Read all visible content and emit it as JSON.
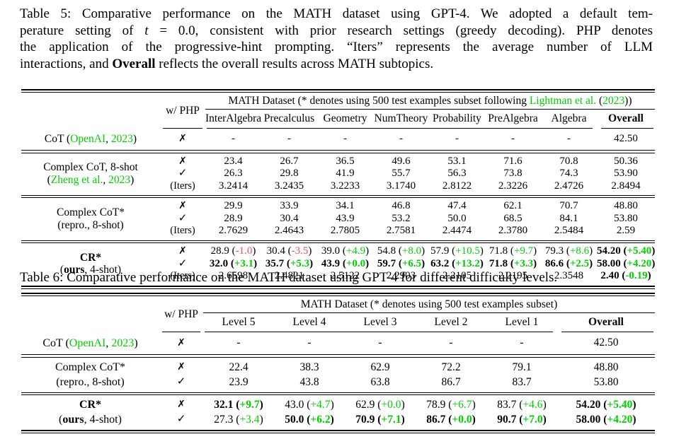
{
  "colors": {
    "green": "#00cf00",
    "red": "#ff4a4a",
    "text": "#000000",
    "background": "#ffffff"
  },
  "table5": {
    "caption_lines": [
      [
        {
          "t": "Table 5: Comparative performance on the MATH dataset using GPT-4. We adopted a default tem-"
        }
      ],
      [
        {
          "t": "perature setting of "
        },
        {
          "t": "t",
          "i": true
        },
        {
          "t": " = 0.0, consistent with prior research settings (greedy decoding). PHP denotes"
        }
      ],
      [
        {
          "t": "the application of the progressive-hint prompting. “Iters” represents the average number of LLM"
        }
      ],
      [
        {
          "t": "interactions, and "
        },
        {
          "t": "Overall",
          "b": true
        },
        {
          "t": " reflects the overall results across MATH subtopics."
        }
      ]
    ],
    "php_header": "w/ PHP",
    "spanner": [
      {
        "t": "MATH Dataset (* denotes using 500 test examples subset following "
      },
      {
        "t": "Lightman et al.",
        "g": true
      },
      {
        "t": " ("
      },
      {
        "t": "2023",
        "g": true
      },
      {
        "t": "))"
      }
    ],
    "columns": [
      "InterAlgebra",
      "Precalculus",
      "Geometry",
      "NumTheory",
      "Probability",
      "PreAlgebra",
      "Algebra",
      "Overall"
    ],
    "groups": [
      {
        "label": [
          [
            {
              "t": "CoT ("
            },
            {
              "t": "OpenAI",
              "g": true
            },
            {
              "t": ", "
            },
            {
              "t": "2023",
              "g": true
            },
            {
              "t": ")"
            }
          ]
        ],
        "rows": [
          {
            "php": "✗",
            "cells": [
              {
                "v": "-"
              },
              {
                "v": "-"
              },
              {
                "v": "-"
              },
              {
                "v": "-"
              },
              {
                "v": "-"
              },
              {
                "v": "-"
              },
              {
                "v": "-"
              },
              {
                "v": "42.50"
              }
            ]
          }
        ]
      },
      {
        "label": [
          [
            {
              "t": "Complex CoT, 8-shot"
            }
          ],
          [
            {
              "t": "("
            },
            {
              "t": "Zheng et al.",
              "g": true
            },
            {
              "t": ", "
            },
            {
              "t": "2023",
              "g": true
            },
            {
              "t": ")"
            }
          ]
        ],
        "rows": [
          {
            "php": "✗",
            "cells": [
              {
                "v": "23.4"
              },
              {
                "v": "26.7"
              },
              {
                "v": "36.5"
              },
              {
                "v": "49.6"
              },
              {
                "v": "53.1"
              },
              {
                "v": "71.6"
              },
              {
                "v": "70.8"
              },
              {
                "v": "50.36"
              }
            ]
          },
          {
            "php": "✓",
            "cells": [
              {
                "v": "26.3"
              },
              {
                "v": "29.8"
              },
              {
                "v": "41.9"
              },
              {
                "v": "55.7"
              },
              {
                "v": "56.3"
              },
              {
                "v": "73.8"
              },
              {
                "v": "74.3"
              },
              {
                "v": "53.90"
              }
            ]
          },
          {
            "php": "(Iters)",
            "cells": [
              {
                "v": "3.2414"
              },
              {
                "v": "3.2435"
              },
              {
                "v": "3.2233"
              },
              {
                "v": "3.1740"
              },
              {
                "v": "2.8122"
              },
              {
                "v": "2.3226"
              },
              {
                "v": "2.4726"
              },
              {
                "v": "2.8494"
              }
            ]
          }
        ]
      },
      {
        "label": [
          [
            {
              "t": "Complex CoT*"
            }
          ],
          [
            {
              "t": "(repro., 8-shot)"
            }
          ]
        ],
        "rows": [
          {
            "php": "✗",
            "cells": [
              {
                "v": "29.9"
              },
              {
                "v": "33.9"
              },
              {
                "v": "34.1"
              },
              {
                "v": "46.8"
              },
              {
                "v": "47.4"
              },
              {
                "v": "62.1"
              },
              {
                "v": "70.7"
              },
              {
                "v": "48.80"
              }
            ]
          },
          {
            "php": "✓",
            "cells": [
              {
                "v": "28.9"
              },
              {
                "v": "30.4"
              },
              {
                "v": "43.9"
              },
              {
                "v": "53.2"
              },
              {
                "v": "50.0"
              },
              {
                "v": "68.5"
              },
              {
                "v": "84.1"
              },
              {
                "v": "53.80"
              }
            ]
          },
          {
            "php": "(Iters)",
            "cells": [
              {
                "v": "2.7629"
              },
              {
                "v": "2.4643"
              },
              {
                "v": "2.7805"
              },
              {
                "v": "2.7581"
              },
              {
                "v": "2.4474"
              },
              {
                "v": "2.3780"
              },
              {
                "v": "2.5484"
              },
              {
                "v": "2.59"
              }
            ]
          }
        ]
      },
      {
        "label": [
          [
            {
              "t": "CR*",
              "b": true
            }
          ],
          [
            {
              "t": "(",
              "": ""
            },
            {
              "t": "ours",
              "b": true
            },
            {
              "t": ", 4-shot)"
            }
          ]
        ],
        "rows": [
          {
            "php": "✗",
            "cells": [
              {
                "v": "28.9",
                "d": "-1.0",
                "dc": "r"
              },
              {
                "v": "30.4",
                "d": "-3.5",
                "dc": "r"
              },
              {
                "v": "39.0",
                "d": "+4.9"
              },
              {
                "v": "54.8",
                "d": "+8.0"
              },
              {
                "v": "57.9",
                "d": "+10.5"
              },
              {
                "v": "71.8",
                "d": "+9.7"
              },
              {
                "v": "79.3",
                "d": "+8.6"
              },
              {
                "v": "54.20",
                "b": true,
                "d": "+5.40"
              }
            ]
          },
          {
            "php": "✓",
            "cells": [
              {
                "v": "32.0",
                "b": true,
                "d": "+3.1"
              },
              {
                "v": "35.7",
                "b": true,
                "d": "+5.3"
              },
              {
                "v": "43.9",
                "b": true,
                "d": "+0.0"
              },
              {
                "v": "59.7",
                "b": true,
                "d": "+6.5"
              },
              {
                "v": "63.2",
                "b": true,
                "d": "+13.2"
              },
              {
                "v": "71.8",
                "b": true,
                "d": "+3.3"
              },
              {
                "v": "86.6",
                "b": true,
                "d": "+2.5"
              },
              {
                "v": "58.00",
                "b": true,
                "d": "+4.20"
              }
            ]
          },
          {
            "php": "(Iters)",
            "cells": [
              {
                "v": "2.6598"
              },
              {
                "v": "2.4821"
              },
              {
                "v": "2.5122"
              },
              {
                "v": "2.2903"
              },
              {
                "v": "2.2105"
              },
              {
                "v": "2.2195"
              },
              {
                "v": "2.3548"
              },
              {
                "v": "2.40",
                "b": true,
                "d": "-0.19"
              }
            ]
          }
        ]
      }
    ]
  },
  "table6": {
    "caption_lines": [
      [
        {
          "t": "Table 6: Comparative performance on the MATH dataset using GPT-4 for different difficulty levels."
        }
      ]
    ],
    "php_header": "w/ PHP",
    "spanner": [
      {
        "t": "MATH Dataset (* denotes using 500 test examples subset)"
      }
    ],
    "columns": [
      "Level 5",
      "Level 4",
      "Level 3",
      "Level 2",
      "Level 1",
      "Overall"
    ],
    "groups": [
      {
        "label": [
          [
            {
              "t": "CoT ("
            },
            {
              "t": "OpenAI",
              "g": true
            },
            {
              "t": ", "
            },
            {
              "t": "2023",
              "g": true
            },
            {
              "t": ")"
            }
          ]
        ],
        "rows": [
          {
            "php": "✗",
            "cells": [
              {
                "v": "-"
              },
              {
                "v": "-"
              },
              {
                "v": "-"
              },
              {
                "v": "-"
              },
              {
                "v": "-"
              },
              {
                "v": "42.50"
              }
            ]
          }
        ]
      },
      {
        "label": [
          [
            {
              "t": "Complex CoT*"
            }
          ],
          [
            {
              "t": "(repro., 8-shot)"
            }
          ]
        ],
        "rows": [
          {
            "php": "✗",
            "cells": [
              {
                "v": "22.4"
              },
              {
                "v": "38.3"
              },
              {
                "v": "62.9"
              },
              {
                "v": "72.2"
              },
              {
                "v": "79.1"
              },
              {
                "v": "48.80"
              }
            ]
          },
          {
            "php": "✓",
            "cells": [
              {
                "v": "23.9"
              },
              {
                "v": "43.8"
              },
              {
                "v": "63.8"
              },
              {
                "v": "86.7"
              },
              {
                "v": "83.7"
              },
              {
                "v": "53.80"
              }
            ]
          }
        ]
      },
      {
        "label": [
          [
            {
              "t": "CR*",
              "b": true
            }
          ],
          [
            {
              "t": "("
            },
            {
              "t": "ours",
              "b": true
            },
            {
              "t": ", 4-shot)"
            }
          ]
        ],
        "rows": [
          {
            "php": "✗",
            "cells": [
              {
                "v": "32.1",
                "b": true,
                "d": "+9.7"
              },
              {
                "v": "43.0",
                "d": "+4.7"
              },
              {
                "v": "62.9",
                "d": "+0.0"
              },
              {
                "v": "78.9",
                "d": "+6.7"
              },
              {
                "v": "83.7",
                "d": "+4.6"
              },
              {
                "v": "54.20",
                "b": true,
                "d": "+5.40"
              }
            ]
          },
          {
            "php": "✓",
            "cells": [
              {
                "v": "27.3",
                "d": "+3.4"
              },
              {
                "v": "50.0",
                "b": true,
                "d": "+6.2"
              },
              {
                "v": "70.9",
                "b": true,
                "d": "+7.1"
              },
              {
                "v": "86.7",
                "b": true,
                "d": "+0.0"
              },
              {
                "v": "90.7",
                "b": true,
                "d": "+7.0"
              },
              {
                "v": "58.00",
                "b": true,
                "d": "+4.20"
              }
            ]
          }
        ]
      }
    ]
  }
}
